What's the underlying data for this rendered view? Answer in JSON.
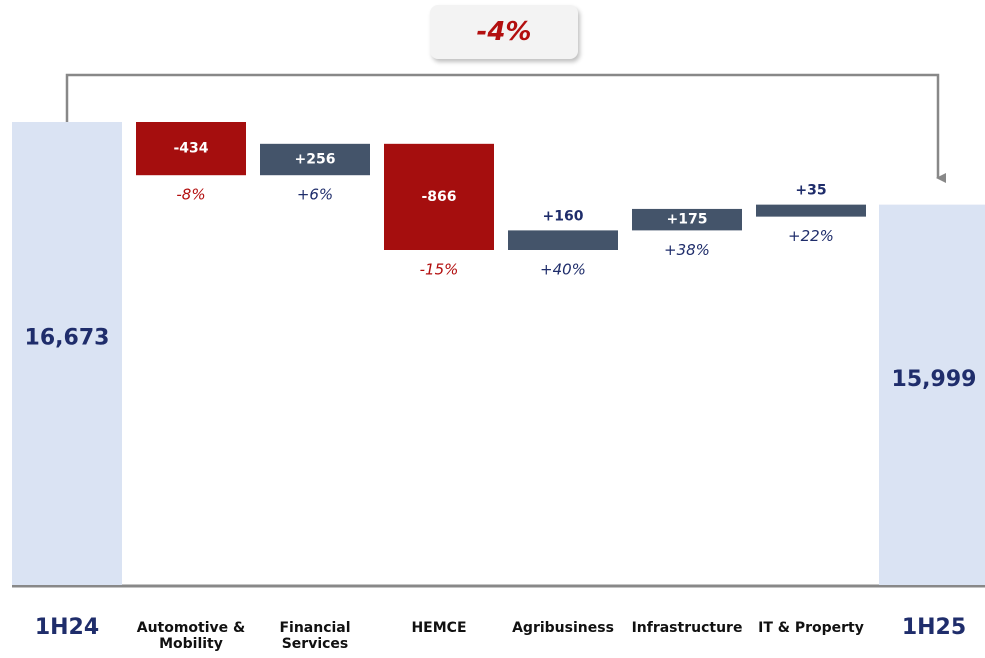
{
  "chart_data": {
    "type": "waterfall",
    "annotation": "-4%",
    "categories": [
      "1H24",
      "Automotive & Mobility",
      "Financial Services",
      "HEMCE",
      "Agribusiness",
      "Infrastructure",
      "IT & Property",
      "1H25"
    ],
    "values": [
      16673,
      -434,
      256,
      -866,
      160,
      175,
      35,
      15999
    ],
    "value_labels": [
      "16,673",
      "-434",
      "+256",
      "-866",
      "+160",
      "+175",
      "+35",
      "15,999"
    ],
    "change_labels": [
      null,
      "-8%",
      "+6%",
      "-15%",
      "+40%",
      "+38%",
      "+22%",
      null
    ],
    "totals": [
      true,
      false,
      false,
      false,
      false,
      false,
      false,
      true
    ],
    "colors": {
      "total": "#dae3f3",
      "increase": "#44546a",
      "decrease": "#a50e0e"
    }
  }
}
